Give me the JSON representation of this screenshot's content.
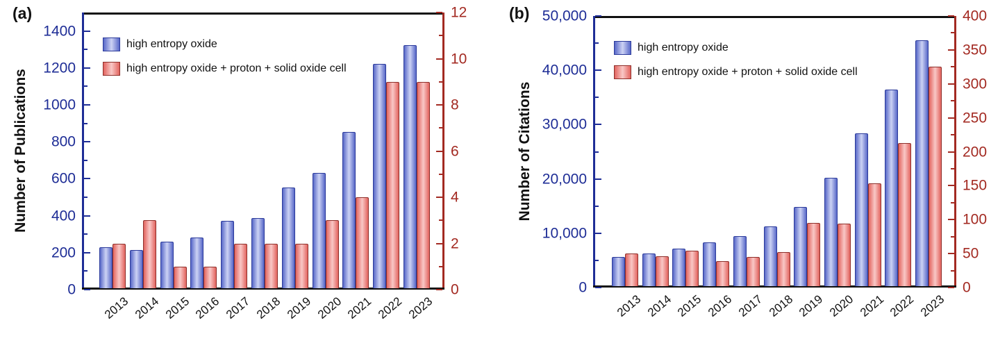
{
  "colors": {
    "left_axis_navy": "#1e2d96",
    "right_axis_dark_red": "#a32a22",
    "frame_black": "#101010",
    "blue_bar_edge": "#5868c8",
    "blue_bar_center": "#ccd2f4",
    "blue_bar_outline": "#2b3a9a",
    "red_bar_edge": "#e2645f",
    "red_bar_center": "#f9c8c6",
    "red_bar_outline": "#8d2f2a",
    "text_black": "#111111",
    "background": "#ffffff"
  },
  "chart_data": [
    {
      "id": "a",
      "type": "bar",
      "panel_label": "(a)",
      "categories": [
        "2013",
        "2014",
        "2015",
        "2016",
        "2017",
        "2018",
        "2019",
        "2020",
        "2021",
        "2022",
        "2023"
      ],
      "left_axis": {
        "title": "Number of Publications",
        "range": [
          0,
          1500
        ],
        "major_ticks": [
          0,
          200,
          400,
          600,
          800,
          1000,
          1200,
          1400
        ],
        "minor_ticks": [
          100,
          300,
          500,
          700,
          900,
          1100,
          1300
        ],
        "comma": false,
        "color": "#1e2d96"
      },
      "right_axis": {
        "title": "",
        "range": [
          0,
          12
        ],
        "major_ticks": [
          0,
          2,
          4,
          6,
          8,
          10,
          12
        ],
        "minor_ticks": [
          1,
          3,
          5,
          7,
          9,
          11
        ],
        "comma": false,
        "color": "#a32a22"
      },
      "legend_position": "top-left",
      "grid": false,
      "series": [
        {
          "name": "high entropy oxide",
          "short": "heo",
          "axis": "left",
          "values": [
            230,
            215,
            258,
            283,
            371,
            387,
            553,
            632,
            855,
            1220,
            1325
          ],
          "fill_edge": "#5868c8",
          "fill_center": "#ccd2f4",
          "outline": "#2b3a9a"
        },
        {
          "name": "high entropy oxide + proton + solid oxide cell",
          "short": "heo-psoc",
          "axis": "right",
          "values": [
            2,
            3,
            1,
            1,
            2,
            2,
            2,
            3,
            4,
            9,
            9
          ],
          "fill_edge": "#e2645f",
          "fill_center": "#f9c8c6",
          "outline": "#8d2f2a"
        }
      ]
    },
    {
      "id": "b",
      "type": "bar",
      "panel_label": "(b)",
      "categories": [
        "2013",
        "2014",
        "2015",
        "2016",
        "2017",
        "2018",
        "2019",
        "2020",
        "2021",
        "2022",
        "2023"
      ],
      "left_axis": {
        "title": "Number of Citations",
        "range": [
          0,
          50000
        ],
        "major_ticks": [
          0,
          10000,
          20000,
          30000,
          40000,
          50000
        ],
        "minor_ticks": [
          5000,
          15000,
          25000,
          35000,
          45000
        ],
        "comma": true,
        "color": "#1e2d96"
      },
      "right_axis": {
        "title": "",
        "range": [
          0,
          400
        ],
        "major_ticks": [
          0,
          50,
          100,
          150,
          200,
          250,
          300,
          350,
          400
        ],
        "minor_ticks": [
          25,
          75,
          125,
          175,
          225,
          275,
          325,
          375
        ],
        "comma": false,
        "color": "#a32a22"
      },
      "legend_position": "top-left",
      "grid": false,
      "series": [
        {
          "name": "high entropy oxide",
          "short": "heo",
          "axis": "left",
          "values": [
            5600,
            6300,
            7100,
            8300,
            9500,
            11300,
            14800,
            20200,
            28400,
            36500,
            45500
          ],
          "fill_edge": "#5868c8",
          "fill_center": "#ccd2f4",
          "outline": "#2b3a9a"
        },
        {
          "name": "high entropy oxide + proton + solid oxide cell",
          "short": "heo-psoc",
          "axis": "right",
          "values": [
            50,
            46,
            54,
            39,
            45,
            52,
            95,
            94,
            153,
            213,
            325
          ],
          "fill_edge": "#e2645f",
          "fill_center": "#f9c8c6",
          "outline": "#8d2f2a"
        }
      ]
    }
  ]
}
